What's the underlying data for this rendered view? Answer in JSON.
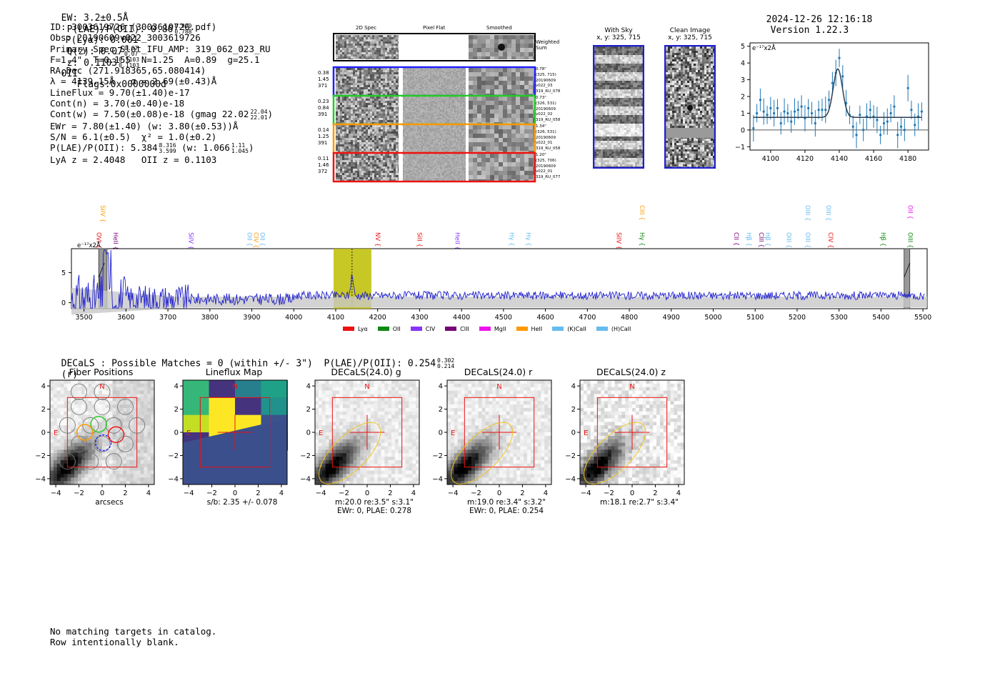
{
  "header": {
    "ew": "EW: 3.2±0.5Å",
    "plae_label": "P(LAE)/P(OII): 0.86",
    "plae_hi": "0.929",
    "plae_lo": "0.788",
    "plya": "P(Lyα): 0.001",
    "qz_label": "Q(z): 0.07",
    "qz_hi": "0.07",
    "qz_lo": "0.07",
    "z_label": "z: 0.1103",
    "z_hi": "0.1103",
    "z_lo": "0.1103",
    "z_line": "OII",
    "flags": "Flags:0x0000000d",
    "datetime": "2024-12-26 12:16:18",
    "version": "Version 1.22.3"
  },
  "info": {
    "id": "ID: 3003619726 (3003619726.pdf)",
    "obs": "Obs: 20190609v022_3003619726",
    "primary": "Primary Spec_Slot_IFU_AMP: 319_062_023_RU",
    "params": "F=1.4\"  T=0.155  N=1.25  A=0.89  g=25.1",
    "radec": "RA,Dec (271.918365,65.080414)",
    "lambda_sigma": "λ = 4139.15Å   σ = 2.69(±0.43)Å",
    "lineflux": "LineFlux = 9.70(±1.40)e-17",
    "contn": "Cont(n) = 3.70(±0.40)e-18",
    "contw": "Cont(w) = 7.50(±0.08)e-18 (gmag 22.02",
    "contw_hi": "22.04",
    "contw_lo": "22.01",
    "contw_end": ")",
    "ewr": "EWr = 7.80(±1.40) (w: 3.80(±0.53))Å",
    "sn": "S/N = 6.1(±0.5)  χ² = 1.0(±0.2)",
    "plae": "P(LAE)/P(OII): 5.384",
    "plae_hi": "8.316",
    "plae_lo": "3.599",
    "plae_w": "(w: 1.066",
    "plae_w_hi": "1.11",
    "plae_w_lo": "1.045",
    "plae_w_end": ")",
    "zline": "LyA z = 2.4048   OII z = 0.1103"
  },
  "cutouts": {
    "col_headers": [
      "2D Spec",
      "Pixel Flat",
      "Smoothed"
    ],
    "weighted_label": "Weighted\nSum",
    "rows": [
      {
        "left": [
          "0.38",
          "1.45",
          "371"
        ],
        "right": [
          "0.78\"",
          "(325, 715)",
          "20190609",
          "v022_03",
          "319_RU_078"
        ],
        "color": "#1f1fff"
      },
      {
        "left": [
          "0.23",
          "0.84",
          "391"
        ],
        "right": [
          "0.73\"",
          "(326, 531)",
          "20190609",
          "v022_02",
          "319_RU_058"
        ],
        "color": "#22cc22"
      },
      {
        "left": [
          "0.14",
          "1.25",
          "391"
        ],
        "right": [
          "1.34\"",
          "(326, 531)",
          "20190609",
          "v022_01",
          "319_RU_058"
        ],
        "color": "#ff9900"
      },
      {
        "left": [
          "0.11",
          "1.46",
          "372"
        ],
        "right": [
          "1.20\"",
          "(325, 706)",
          "20190609",
          "v022_01",
          "319_RU_077"
        ],
        "color": "#ee1111"
      }
    ]
  },
  "sky": {
    "with_sky_title": "With Sky",
    "with_sky_xy": "x, y: 325, 715",
    "clean_title": "Clean Image",
    "clean_xy": "x, y: 325, 715"
  },
  "zoom_plot": {
    "unit_label": "e⁻¹⁷x2Å",
    "chart_data": {
      "type": "line",
      "title": "",
      "xlim": [
        4088,
        4192
      ],
      "ylim": [
        -1.2,
        5.2
      ],
      "x_ticks": [
        4100,
        4120,
        4140,
        4160,
        4180
      ],
      "y_ticks": [
        -1,
        0,
        1,
        2,
        3,
        4,
        5
      ],
      "fit": {
        "center": 4139.15,
        "sigma": 2.69,
        "amp": 2.9,
        "base": 0.75
      },
      "points": [
        [
          4090,
          0.1
        ],
        [
          4092,
          1.0
        ],
        [
          4094,
          1.8
        ],
        [
          4096,
          1.1
        ],
        [
          4098,
          0.9
        ],
        [
          4100,
          1.3
        ],
        [
          4102,
          1.0
        ],
        [
          4104,
          1.3
        ],
        [
          4106,
          0.4
        ],
        [
          4108,
          1.1
        ],
        [
          4110,
          1.0
        ],
        [
          4112,
          0.5
        ],
        [
          4114,
          1.1
        ],
        [
          4116,
          1.2
        ],
        [
          4118,
          1.4
        ],
        [
          4120,
          0.7
        ],
        [
          4122,
          1.3
        ],
        [
          4124,
          1.0
        ],
        [
          4126,
          0.4
        ],
        [
          4128,
          1.2
        ],
        [
          4130,
          1.2
        ],
        [
          4132,
          1.2
        ],
        [
          4134,
          1.8
        ],
        [
          4136,
          2.8
        ],
        [
          4138,
          3.4
        ],
        [
          4140,
          4.3
        ],
        [
          4142,
          3.2
        ],
        [
          4144,
          1.6
        ],
        [
          4146,
          0.9
        ],
        [
          4148,
          0.2
        ],
        [
          4150,
          -0.3
        ],
        [
          4152,
          0.9
        ],
        [
          4154,
          0.0
        ],
        [
          4156,
          0.8
        ],
        [
          4158,
          1.2
        ],
        [
          4160,
          0.8
        ],
        [
          4162,
          0.6
        ],
        [
          4164,
          -0.3
        ],
        [
          4166,
          0.4
        ],
        [
          4168,
          0.5
        ],
        [
          4170,
          1.0
        ],
        [
          4172,
          1.4
        ],
        [
          4174,
          -0.3
        ],
        [
          4176,
          0.2
        ],
        [
          4178,
          0.0
        ],
        [
          4180,
          2.5
        ],
        [
          4182,
          1.2
        ],
        [
          4184,
          0.3
        ],
        [
          4186,
          0.8
        ],
        [
          4188,
          1.1
        ]
      ]
    }
  },
  "full_spectrum": {
    "unit_label": "e⁻¹⁷x2Å",
    "chart_data": {
      "type": "line",
      "xlim": [
        3470,
        5510
      ],
      "ylim": [
        -1,
        9
      ],
      "x_ticks": [
        3500,
        3600,
        3700,
        3800,
        3900,
        4000,
        4100,
        4200,
        4300,
        4400,
        4500,
        4600,
        4700,
        4800,
        4900,
        5000,
        5100,
        5200,
        5300,
        5400,
        5500
      ],
      "y_ticks": [
        0,
        5
      ],
      "highlight": [
        4095,
        4185
      ],
      "line_marker": 4139,
      "masked_regions": [
        [
          3535,
          3555
        ],
        [
          5455,
          5465
        ]
      ]
    },
    "line_labels": [
      {
        "name": "SiIV",
        "x": 3535,
        "row": 0,
        "color": "#ff9900"
      },
      {
        "name": "OVI",
        "x": 3525,
        "row": 1,
        "color": "#ee1111"
      },
      {
        "name": "HeII",
        "x": 3565,
        "row": 1,
        "color": "#770077"
      },
      {
        "name": "SiIV",
        "x": 3745,
        "row": 1,
        "color": "#8833ff"
      },
      {
        "name": "OII",
        "x": 3885,
        "row": 1,
        "color": "#66bbee"
      },
      {
        "name": "CIV",
        "x": 3900,
        "row": 1,
        "color": "#ff9900"
      },
      {
        "name": "OII",
        "x": 3915,
        "row": 1,
        "color": "#66bbee"
      },
      {
        "name": "NV",
        "x": 4190,
        "row": 1,
        "color": "#ee1111"
      },
      {
        "name": "SiII",
        "x": 4290,
        "row": 1,
        "color": "#ee1111"
      },
      {
        "name": "HeII",
        "x": 4380,
        "row": 1,
        "color": "#8833ff"
      },
      {
        "name": "Hγ",
        "x": 4510,
        "row": 1,
        "color": "#66bbee"
      },
      {
        "name": "Hγ",
        "x": 4550,
        "row": 1,
        "color": "#66bbee"
      },
      {
        "name": "SiIV",
        "x": 4765,
        "row": 1,
        "color": "#ee1111"
      },
      {
        "name": "CIII",
        "x": 4820,
        "row": 0,
        "color": "#ff9900"
      },
      {
        "name": "Hγ",
        "x": 4820,
        "row": 1,
        "color": "#118811"
      },
      {
        "name": "CII",
        "x": 5045,
        "row": 1,
        "color": "#770077"
      },
      {
        "name": "Hβ",
        "x": 5075,
        "row": 1,
        "color": "#66bbee"
      },
      {
        "name": "CIII",
        "x": 5105,
        "row": 1,
        "color": "#770077"
      },
      {
        "name": "Hβ",
        "x": 5120,
        "row": 1,
        "color": "#66bbee"
      },
      {
        "name": "OIII",
        "x": 5170,
        "row": 1,
        "color": "#66bbee"
      },
      {
        "name": "OIII",
        "x": 5215,
        "row": 0,
        "color": "#66bbee"
      },
      {
        "name": "OIII",
        "x": 5215,
        "row": 1,
        "color": "#66bbee"
      },
      {
        "name": "OIII",
        "x": 5265,
        "row": 0,
        "color": "#66bbee"
      },
      {
        "name": "CIV",
        "x": 5270,
        "row": 1,
        "color": "#ee1111"
      },
      {
        "name": "Hβ",
        "x": 5395,
        "row": 1,
        "color": "#118811"
      },
      {
        "name": "OII",
        "x": 5460,
        "row": 0,
        "color": "#ee11ee"
      },
      {
        "name": "OIII",
        "x": 5460,
        "row": 1,
        "color": "#118811"
      }
    ],
    "legend": [
      {
        "label": "Lyα",
        "color": "#ee1111"
      },
      {
        "label": "OII",
        "color": "#118811"
      },
      {
        "label": "CIV",
        "color": "#8833ff"
      },
      {
        "label": "CIII",
        "color": "#770077"
      },
      {
        "label": "MgII",
        "color": "#ee11ee"
      },
      {
        "label": "HeII",
        "color": "#ff9900"
      },
      {
        "label": "(K)CaII",
        "color": "#66bbee"
      },
      {
        "label": "(H)CaII",
        "color": "#66bbee"
      }
    ]
  },
  "decals": {
    "summary": "DECaLS : Possible Matches = 0 (within +/- 3\")  P(LAE)/P(OII): 0.254",
    "summary_hi": "0.302",
    "summary_lo": "0.214",
    "summary_end": "(r)",
    "axis_ticks": [
      "−4",
      "−2",
      "0",
      "2",
      "4"
    ],
    "panels": [
      {
        "title": "Fiber Positions",
        "caption": [
          "arcsecs"
        ]
      },
      {
        "title": "Lineflux Map",
        "caption": [
          "s/b: 2.35 +/- 0.078"
        ]
      },
      {
        "title": "DECaLS(24.0) g",
        "caption": [
          "m:20.0  re:3.5\"  s:3.1\"",
          "EWr: 0, PLAE: 0.278"
        ]
      },
      {
        "title": "DECaLS(24.0) r",
        "caption": [
          "m:19.0  re:3.4\"  s:3.2\"",
          "EWr: 0, PLAE: 0.254"
        ]
      },
      {
        "title": "DECaLS(24.0) z",
        "caption": [
          "m:18.1  re:2.7\"  s:3.4\""
        ]
      }
    ],
    "north": "N",
    "east": "E"
  },
  "footer": {
    "line1": "No matching targets in catalog.",
    "line2": "Row intentionally blank."
  },
  "colors": {
    "spectrum": "#1f1fcc",
    "fit": "#2c3e50",
    "points": "#1f77b4",
    "highlight": "#bdbd00",
    "box_red": "#ee1111",
    "ellipse": "#f0c419"
  }
}
